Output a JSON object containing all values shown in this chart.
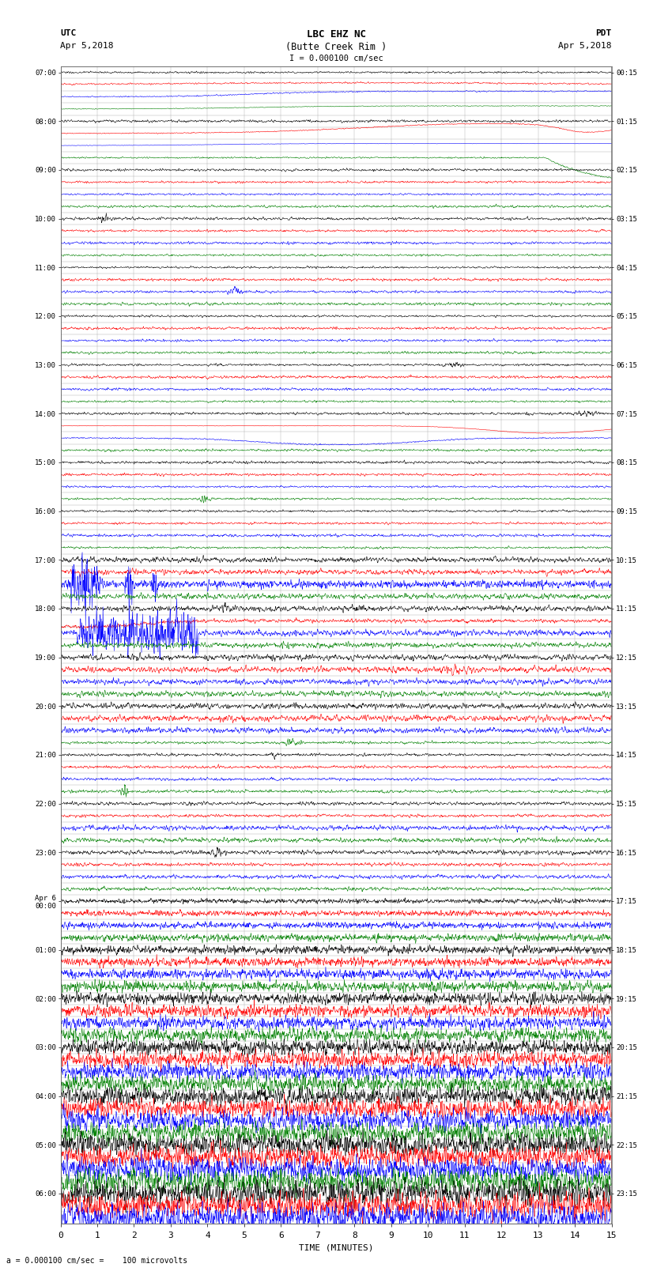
{
  "title_line1": "LBC EHZ NC",
  "title_line2": "(Butte Creek Rim )",
  "scale_label": "I = 0.000100 cm/sec",
  "utc_label": "UTC",
  "utc_date": "Apr 5,2018",
  "pdt_label": "PDT",
  "pdt_date": "Apr 5,2018",
  "xlabel": "TIME (MINUTES)",
  "bottom_note": "= 0.000100 cm/sec =    100 microvolts",
  "xlim": [
    0,
    15
  ],
  "xticks": [
    0,
    1,
    2,
    3,
    4,
    5,
    6,
    7,
    8,
    9,
    10,
    11,
    12,
    13,
    14,
    15
  ],
  "bgcolor": "#ffffff",
  "grid_color": "#888888",
  "trace_colors": [
    "black",
    "red",
    "blue",
    "green"
  ],
  "fig_width": 8.5,
  "fig_height": 16.13,
  "left_labels_utc": [
    "07:00",
    "",
    "",
    "",
    "08:00",
    "",
    "",
    "",
    "09:00",
    "",
    "",
    "",
    "10:00",
    "",
    "",
    "",
    "11:00",
    "",
    "",
    "",
    "12:00",
    "",
    "",
    "",
    "13:00",
    "",
    "",
    "",
    "14:00",
    "",
    "",
    "",
    "15:00",
    "",
    "",
    "",
    "16:00",
    "",
    "",
    "",
    "17:00",
    "",
    "",
    "",
    "18:00",
    "",
    "",
    "",
    "19:00",
    "",
    "",
    "",
    "20:00",
    "",
    "",
    "",
    "21:00",
    "",
    "",
    "",
    "22:00",
    "",
    "",
    "",
    "23:00",
    "",
    "",
    "",
    "Apr 6\n00:00",
    "",
    "",
    "",
    "01:00",
    "",
    "",
    "",
    "02:00",
    "",
    "",
    "",
    "03:00",
    "",
    "",
    "",
    "04:00",
    "",
    "",
    "",
    "05:00",
    "",
    "",
    "",
    "06:00",
    "",
    ""
  ],
  "right_labels_pdt": [
    "00:15",
    "",
    "",
    "",
    "01:15",
    "",
    "",
    "",
    "02:15",
    "",
    "",
    "",
    "03:15",
    "",
    "",
    "",
    "04:15",
    "",
    "",
    "",
    "05:15",
    "",
    "",
    "",
    "06:15",
    "",
    "",
    "",
    "07:15",
    "",
    "",
    "",
    "08:15",
    "",
    "",
    "",
    "09:15",
    "",
    "",
    "",
    "10:15",
    "",
    "",
    "",
    "11:15",
    "",
    "",
    "",
    "12:15",
    "",
    "",
    "",
    "13:15",
    "",
    "",
    "",
    "14:15",
    "",
    "",
    "",
    "15:15",
    "",
    "",
    "",
    "16:15",
    "",
    "",
    "",
    "17:15",
    "",
    "",
    "",
    "18:15",
    "",
    "",
    "",
    "19:15",
    "",
    "",
    "",
    "20:15",
    "",
    "",
    "",
    "21:15",
    "",
    "",
    "",
    "22:15",
    "",
    "",
    "",
    "23:15",
    "",
    ""
  ]
}
